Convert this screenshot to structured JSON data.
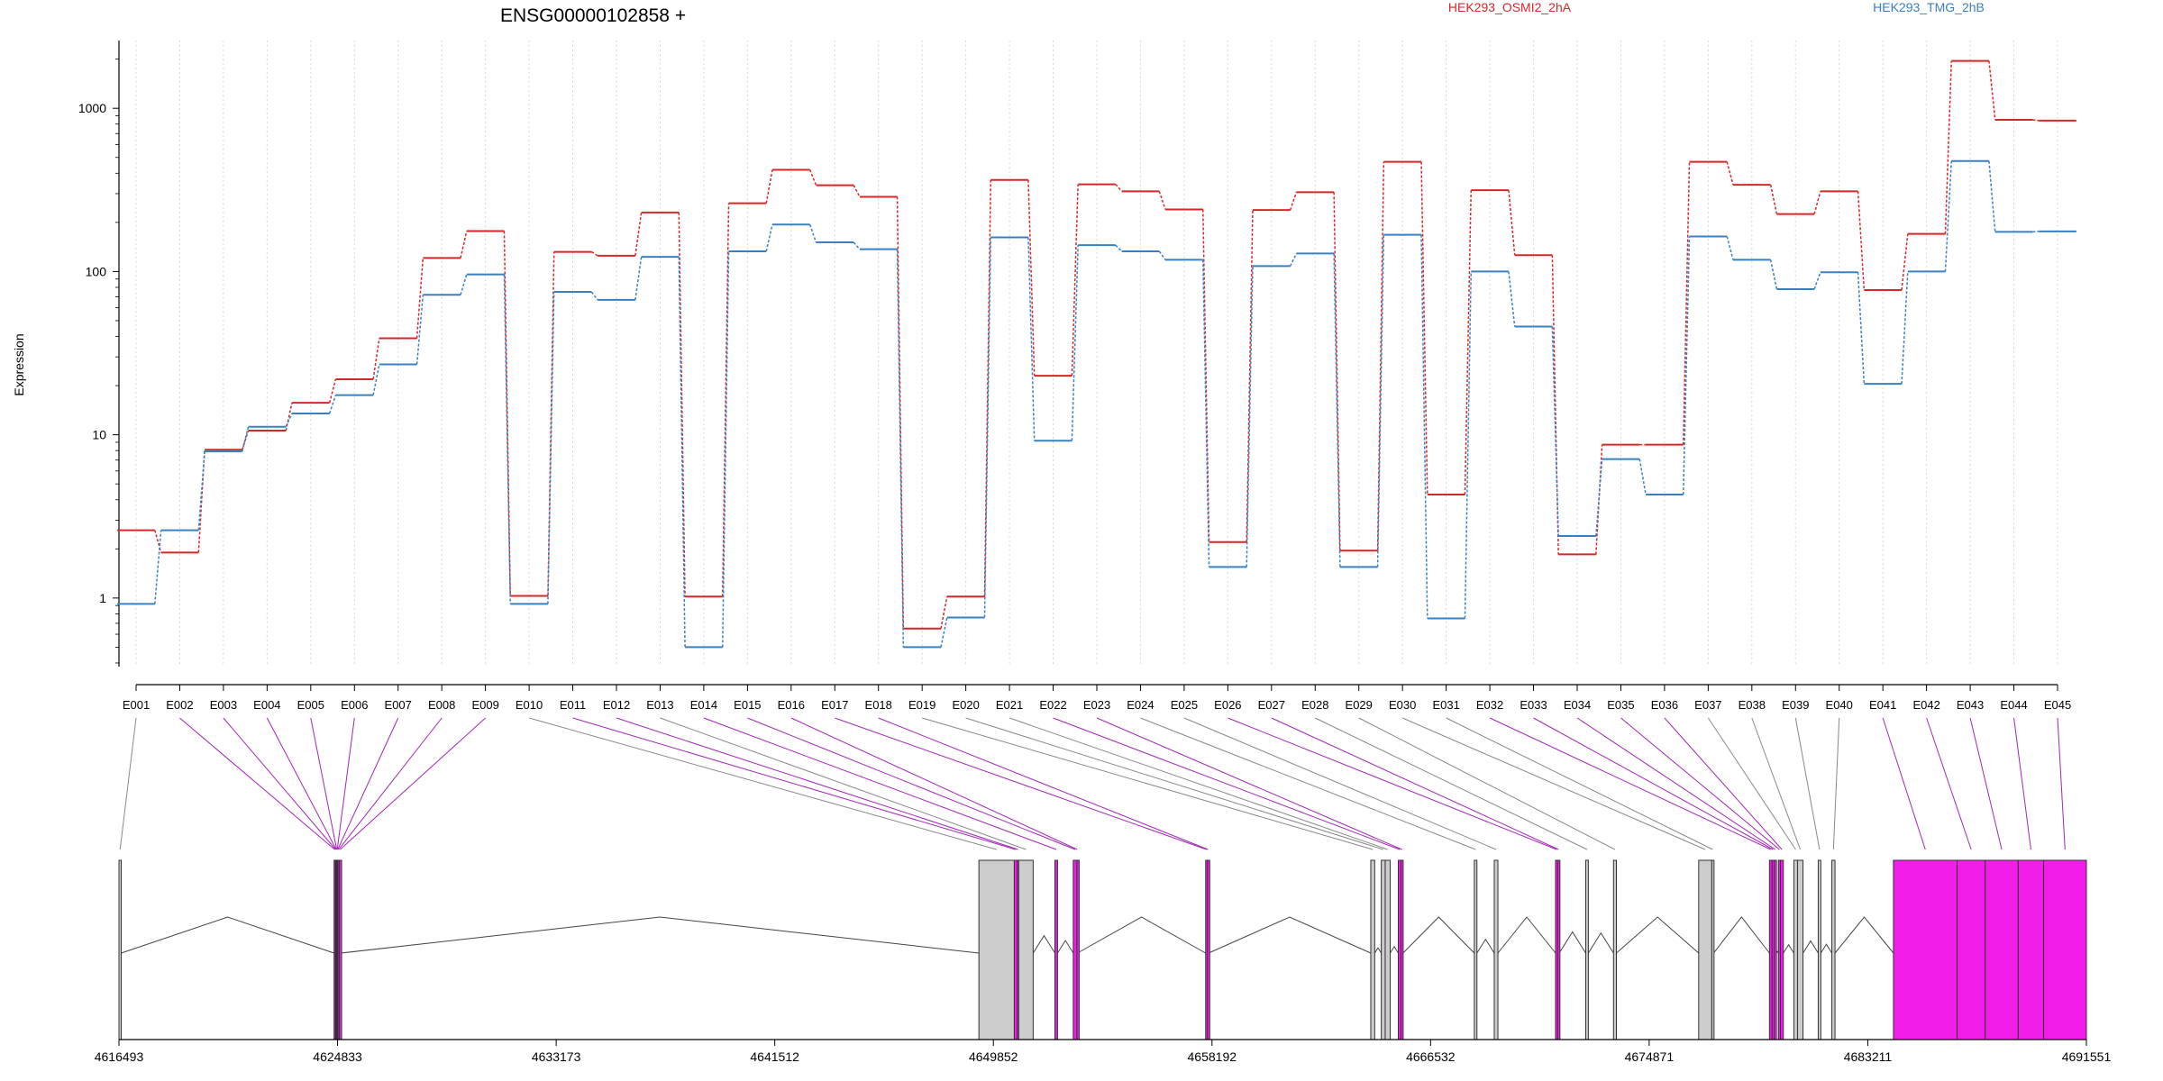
{
  "chart_data": {
    "type": "line",
    "title": "ENSG00000102858 +",
    "ylabel": "Expression",
    "yscale": "log",
    "ylim": [
      0.38,
      2600
    ],
    "yticks": [
      1,
      10,
      100,
      1000
    ],
    "ytick_labels": [
      "1",
      "10",
      "100",
      "1000"
    ],
    "categories": [
      "E001",
      "E002",
      "E003",
      "E004",
      "E005",
      "E006",
      "E007",
      "E008",
      "E009",
      "E010",
      "E011",
      "E012",
      "E013",
      "E014",
      "E015",
      "E016",
      "E017",
      "E018",
      "E019",
      "E020",
      "E021",
      "E022",
      "E023",
      "E024",
      "E025",
      "E026",
      "E027",
      "E028",
      "E029",
      "E030",
      "E031",
      "E032",
      "E033",
      "E034",
      "E035",
      "E036",
      "E037",
      "E038",
      "E039",
      "E040",
      "E041",
      "E042",
      "E043",
      "E044",
      "E045"
    ],
    "series": [
      {
        "name": "HEK293_OSMI2_2hA",
        "color": "#d62728",
        "values": [
          2.6,
          1.9,
          8.1,
          10.6,
          15.7,
          21.9,
          39,
          121,
          177,
          1.03,
          132,
          125,
          230,
          1.02,
          262,
          420,
          338,
          287,
          0.65,
          1.02,
          364,
          23,
          342,
          310,
          240,
          2.2,
          238,
          306,
          1.95,
          470,
          4.3,
          315,
          126,
          1.85,
          8.7,
          8.7,
          470,
          340,
          225,
          310,
          77,
          170,
          1950,
          850,
          840
        ]
      },
      {
        "name": "HEK293_TMG_2hB",
        "color": "#3a80c0",
        "values": [
          0.92,
          2.6,
          7.9,
          11.2,
          13.5,
          17.5,
          27,
          72,
          96,
          0.92,
          75,
          67,
          123,
          0.5,
          133,
          194,
          151,
          137,
          0.5,
          0.76,
          162,
          9.2,
          145,
          133,
          118,
          1.55,
          108,
          129,
          1.55,
          168,
          0.75,
          100,
          46,
          2.4,
          7.1,
          4.3,
          164,
          118,
          78,
          99,
          20.5,
          100,
          475,
          175,
          176
        ]
      }
    ],
    "legend_placement": "top",
    "genomic_axis": {
      "range": [
        4616493,
        4691551
      ],
      "ticks": [
        "4616493",
        "4624833",
        "4633173",
        "4641512",
        "4649852",
        "4658192",
        "4666532",
        "4674871",
        "4683211",
        "4691551"
      ]
    },
    "exons": [
      {
        "id": "E001",
        "start": 4616493,
        "end": 4616578,
        "highlight": false
      },
      {
        "id": "E002",
        "start": 4624700,
        "end": 4624748,
        "highlight": true
      },
      {
        "id": "E003",
        "start": 4624748,
        "end": 4624772,
        "highlight": true
      },
      {
        "id": "E004",
        "start": 4624772,
        "end": 4624790,
        "highlight": true
      },
      {
        "id": "E005",
        "start": 4624790,
        "end": 4624810,
        "highlight": true
      },
      {
        "id": "E006",
        "start": 4624810,
        "end": 4624830,
        "highlight": true
      },
      {
        "id": "E007",
        "start": 4624830,
        "end": 4624850,
        "highlight": true
      },
      {
        "id": "E008",
        "start": 4624850,
        "end": 4624900,
        "highlight": true
      },
      {
        "id": "E009",
        "start": 4624900,
        "end": 4624960,
        "highlight": true
      },
      {
        "id": "E010",
        "start": 4649300,
        "end": 4650650,
        "highlight": false
      },
      {
        "id": "E011",
        "start": 4650650,
        "end": 4650760,
        "highlight": true
      },
      {
        "id": "E012",
        "start": 4650760,
        "end": 4650820,
        "highlight": true
      },
      {
        "id": "E013",
        "start": 4650820,
        "end": 4651370,
        "highlight": false
      },
      {
        "id": "E014",
        "start": 4652200,
        "end": 4652300,
        "highlight": true
      },
      {
        "id": "E015",
        "start": 4652900,
        "end": 4653040,
        "highlight": true
      },
      {
        "id": "E016",
        "start": 4653040,
        "end": 4653060,
        "highlight": true
      },
      {
        "id": "E017",
        "start": 4657950,
        "end": 4658020,
        "highlight": true
      },
      {
        "id": "E018",
        "start": 4658020,
        "end": 4658060,
        "highlight": true
      },
      {
        "id": "E019",
        "start": 4664250,
        "end": 4664400,
        "highlight": false
      },
      {
        "id": "E020",
        "start": 4664650,
        "end": 4664800,
        "highlight": false
      },
      {
        "id": "E021",
        "start": 4664800,
        "end": 4664990,
        "highlight": false
      },
      {
        "id": "E022",
        "start": 4665300,
        "end": 4665400,
        "highlight": true
      },
      {
        "id": "E023",
        "start": 4665400,
        "end": 4665480,
        "highlight": true
      },
      {
        "id": "E024",
        "start": 4668200,
        "end": 4668300,
        "highlight": false
      },
      {
        "id": "E025",
        "start": 4668960,
        "end": 4669100,
        "highlight": false
      },
      {
        "id": "E026",
        "start": 4671300,
        "end": 4671380,
        "highlight": true
      },
      {
        "id": "E027",
        "start": 4671380,
        "end": 4671440,
        "highlight": true
      },
      {
        "id": "E028",
        "start": 4672450,
        "end": 4672550,
        "highlight": false
      },
      {
        "id": "E029",
        "start": 4673510,
        "end": 4673620,
        "highlight": false
      },
      {
        "id": "E030",
        "start": 4676760,
        "end": 4677260,
        "highlight": false
      },
      {
        "id": "E031",
        "start": 4677260,
        "end": 4677330,
        "highlight": false
      },
      {
        "id": "E032",
        "start": 4679460,
        "end": 4679560,
        "highlight": true
      },
      {
        "id": "E033",
        "start": 4679560,
        "end": 4679640,
        "highlight": true
      },
      {
        "id": "E034",
        "start": 4679640,
        "end": 4679720,
        "highlight": true
      },
      {
        "id": "E035",
        "start": 4679800,
        "end": 4679880,
        "highlight": true
      },
      {
        "id": "E036",
        "start": 4679880,
        "end": 4679990,
        "highlight": true
      },
      {
        "id": "E037",
        "start": 4680390,
        "end": 4680530,
        "highlight": false
      },
      {
        "id": "E038",
        "start": 4680530,
        "end": 4680740,
        "highlight": false
      },
      {
        "id": "E039",
        "start": 4681320,
        "end": 4681420,
        "highlight": false
      },
      {
        "id": "E040",
        "start": 4681840,
        "end": 4681960,
        "highlight": false
      },
      {
        "id": "E041",
        "start": 4684190,
        "end": 4686620,
        "highlight": true
      },
      {
        "id": "E042",
        "start": 4686620,
        "end": 4687690,
        "highlight": true
      },
      {
        "id": "E043",
        "start": 4687690,
        "end": 4688950,
        "highlight": true
      },
      {
        "id": "E044",
        "start": 4688950,
        "end": 4689920,
        "highlight": true
      },
      {
        "id": "E045",
        "start": 4689920,
        "end": 4691551,
        "highlight": true
      }
    ]
  }
}
